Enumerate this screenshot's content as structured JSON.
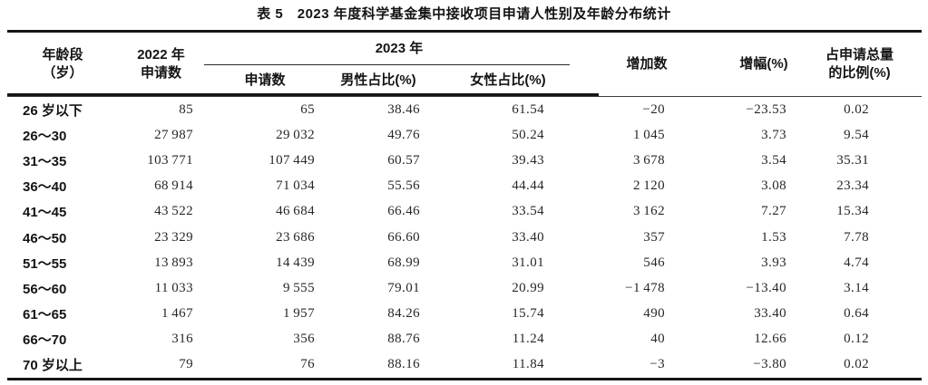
{
  "page": {
    "title": "表 5　2023 年度科学基金集中接收项目申请人性别及年龄分布统计"
  },
  "table": {
    "headers": {
      "age_l1": "年龄段",
      "age_l2": "（岁）",
      "y2022_l1": "2022 年",
      "y2022_l2": "申请数",
      "y2023_group": "2023 年",
      "y2023_apps": "申请数",
      "male_pct": "男性占比(%)",
      "female_pct": "女性占比(%)",
      "increase": "增加数",
      "growth": "增幅(%)",
      "share_l1": "占申请总量",
      "share_l2": "的比例(%)"
    },
    "rows": [
      [
        "26 岁以下",
        "85",
        "65",
        "38.46",
        "61.54",
        "−20",
        "−23.53",
        "0.02"
      ],
      [
        "26～30",
        "27 987",
        "29 032",
        "49.76",
        "50.24",
        "1 045",
        "3.73",
        "9.54"
      ],
      [
        "31～35",
        "103 771",
        "107 449",
        "60.57",
        "39.43",
        "3 678",
        "3.54",
        "35.31"
      ],
      [
        "36～40",
        "68 914",
        "71 034",
        "55.56",
        "44.44",
        "2 120",
        "3.08",
        "23.34"
      ],
      [
        "41～45",
        "43 522",
        "46 684",
        "66.46",
        "33.54",
        "3 162",
        "7.27",
        "15.34"
      ],
      [
        "46～50",
        "23 329",
        "23 686",
        "66.60",
        "33.40",
        "357",
        "1.53",
        "7.78"
      ],
      [
        "51～55",
        "13 893",
        "14 439",
        "68.99",
        "31.01",
        "546",
        "3.93",
        "4.74"
      ],
      [
        "56～60",
        "11 033",
        "9 555",
        "79.01",
        "20.99",
        "−1 478",
        "−13.40",
        "3.14"
      ],
      [
        "61～65",
        "1 467",
        "1 957",
        "84.26",
        "15.74",
        "490",
        "33.40",
        "0.64"
      ],
      [
        "66～70",
        "316",
        "356",
        "88.76",
        "11.24",
        "40",
        "12.66",
        "0.12"
      ],
      [
        "70 岁以上",
        "79",
        "76",
        "88.16",
        "11.84",
        "−3",
        "−3.80",
        "0.02"
      ]
    ]
  }
}
